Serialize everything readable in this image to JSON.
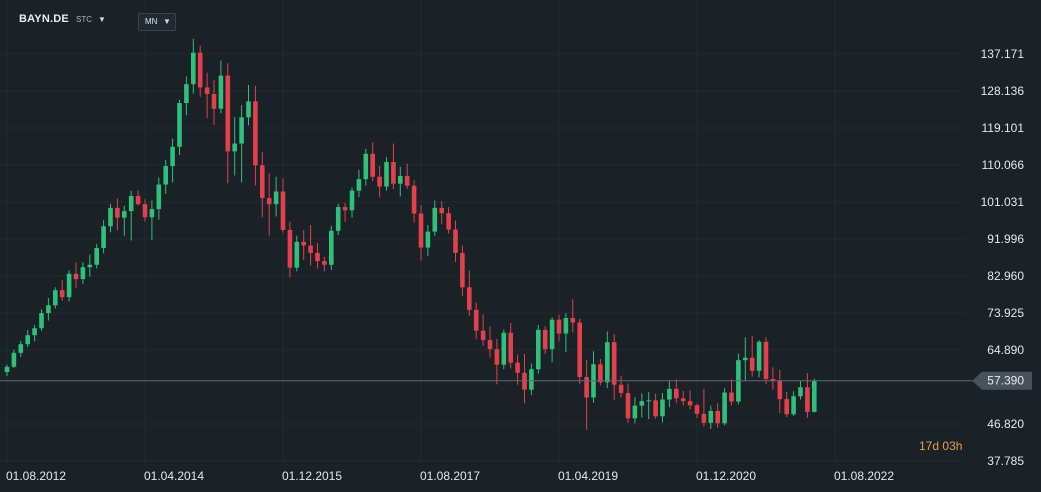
{
  "header": {
    "ticker": "BAYN.DE",
    "exchange": "STC",
    "timeframe": "MN"
  },
  "countdown": {
    "days": "17",
    "d_unit": "d",
    "hours": "03",
    "h_unit": "h"
  },
  "colors": {
    "background": "#1a2127",
    "up": "#2fc07a",
    "down": "#e2404d",
    "grid": "#232c33",
    "price_line": "#5f6b76",
    "price_tag": "#47525c",
    "countdown": "#e6a03a"
  },
  "chart_data": {
    "type": "candlestick",
    "title": "",
    "xlabel": "",
    "ylabel": "",
    "ylim": [
      37.785,
      137.171
    ],
    "y_ticks": [
      {
        "label": "137.171",
        "value": 137.171
      },
      {
        "label": "128.136",
        "value": 128.136
      },
      {
        "label": "119.101",
        "value": 119.101
      },
      {
        "label": "110.066",
        "value": 110.066
      },
      {
        "label": "101.031",
        "value": 101.031
      },
      {
        "label": "91.996",
        "value": 91.996
      },
      {
        "label": "82.960",
        "value": 82.96
      },
      {
        "label": "73.925",
        "value": 73.925
      },
      {
        "label": "64.890",
        "value": 64.89
      },
      {
        "label": "46.820",
        "value": 46.82
      },
      {
        "label": "37.785",
        "value": 37.785
      }
    ],
    "x_ticks": [
      {
        "label": "01.08.2012",
        "index": 0
      },
      {
        "label": "01.04.2014",
        "index": 20
      },
      {
        "label": "01.12.2015",
        "index": 40
      },
      {
        "label": "01.08.2017",
        "index": 60
      },
      {
        "label": "01.04.2019",
        "index": 80
      },
      {
        "label": "01.12.2020",
        "index": 100
      },
      {
        "label": "01.08.2022",
        "index": 120
      }
    ],
    "last_price": {
      "label": "57.390",
      "value": 57.39
    },
    "grid": true,
    "candles": [
      [
        59.5,
        61.3,
        58.5,
        60.8
      ],
      [
        60.8,
        65.0,
        60.5,
        64.2
      ],
      [
        64.2,
        67.1,
        63.2,
        66.3
      ],
      [
        66.3,
        69.8,
        65.6,
        68.5
      ],
      [
        68.5,
        71.0,
        67.0,
        70.2
      ],
      [
        70.2,
        74.8,
        69.6,
        73.9
      ],
      [
        73.9,
        77.6,
        72.1,
        75.8
      ],
      [
        75.8,
        80.2,
        75.0,
        79.5
      ],
      [
        79.5,
        82.0,
        76.9,
        77.8
      ],
      [
        77.8,
        84.4,
        76.8,
        83.5
      ],
      [
        83.5,
        86.2,
        80.1,
        82.2
      ],
      [
        82.2,
        86.3,
        81.0,
        85.1
      ],
      [
        85.1,
        88.2,
        82.8,
        85.7
      ],
      [
        85.7,
        90.8,
        84.8,
        89.8
      ],
      [
        89.8,
        96.6,
        88.5,
        95.1
      ],
      [
        95.1,
        100.6,
        93.6,
        99.6
      ],
      [
        99.6,
        101.9,
        94.1,
        97.2
      ],
      [
        97.2,
        100.1,
        92.8,
        98.8
      ],
      [
        98.8,
        103.8,
        91.6,
        102.5
      ],
      [
        102.5,
        103.9,
        100.2,
        100.5
      ],
      [
        100.5,
        101.7,
        96.3,
        97.3
      ],
      [
        97.3,
        101.4,
        91.8,
        99.3
      ],
      [
        99.3,
        107.0,
        96.7,
        105.3
      ],
      [
        105.3,
        111.3,
        103.0,
        109.8
      ],
      [
        109.8,
        116.5,
        105.8,
        114.5
      ],
      [
        114.5,
        126.0,
        112.5,
        125.2
      ],
      [
        125.2,
        131.7,
        122.2,
        129.8
      ],
      [
        129.8,
        140.9,
        127.5,
        137.5
      ],
      [
        137.5,
        139.2,
        126.7,
        129.0
      ],
      [
        129.0,
        132.6,
        121.5,
        127.4
      ],
      [
        127.4,
        130.8,
        119.8,
        123.8
      ],
      [
        123.8,
        135.6,
        122.7,
        131.9
      ],
      [
        131.9,
        134.9,
        105.6,
        113.4
      ],
      [
        113.4,
        121.8,
        107.5,
        115.3
      ],
      [
        115.3,
        124.7,
        105.8,
        121.7
      ],
      [
        121.7,
        129.6,
        119.7,
        125.6
      ],
      [
        125.6,
        129.4,
        105.1,
        110.0
      ],
      [
        110.0,
        113.2,
        97.3,
        102.0
      ],
      [
        102.0,
        108.0,
        92.8,
        100.5
      ],
      [
        100.5,
        107.2,
        97.5,
        103.6
      ],
      [
        103.6,
        106.8,
        93.5,
        94.2
      ],
      [
        94.2,
        96.2,
        82.6,
        85.0
      ],
      [
        85.0,
        92.8,
        84.1,
        91.3
      ],
      [
        91.3,
        94.2,
        86.9,
        90.4
      ],
      [
        90.4,
        95.4,
        85.5,
        88.6
      ],
      [
        88.6,
        91.0,
        84.8,
        86.6
      ],
      [
        86.6,
        87.6,
        84.1,
        85.7
      ],
      [
        85.7,
        95.2,
        84.4,
        94.0
      ],
      [
        94.0,
        100.6,
        93.0,
        99.8
      ],
      [
        99.8,
        100.8,
        96.2,
        99.0
      ],
      [
        99.0,
        104.6,
        97.2,
        103.8
      ],
      [
        103.8,
        108.9,
        102.2,
        106.6
      ],
      [
        106.6,
        114.0,
        105.0,
        112.8
      ],
      [
        112.8,
        115.6,
        106.1,
        107.2
      ],
      [
        107.2,
        109.8,
        102.2,
        104.8
      ],
      [
        104.8,
        112.0,
        103.8,
        110.8
      ],
      [
        110.8,
        115.3,
        104.2,
        105.5
      ],
      [
        105.5,
        109.6,
        102.4,
        107.4
      ],
      [
        107.4,
        110.4,
        104.2,
        105.0
      ],
      [
        105.0,
        106.3,
        96.0,
        98.2
      ],
      [
        98.2,
        100.2,
        86.7,
        89.9
      ],
      [
        89.9,
        95.4,
        87.9,
        93.8
      ],
      [
        93.8,
        101.4,
        92.8,
        99.6
      ],
      [
        99.6,
        101.2,
        95.6,
        98.3
      ],
      [
        98.3,
        99.8,
        93.3,
        94.3
      ],
      [
        94.3,
        96.5,
        86.4,
        88.6
      ],
      [
        88.6,
        90.4,
        78.1,
        80.2
      ],
      [
        80.2,
        84.3,
        73.2,
        74.7
      ],
      [
        74.7,
        76.5,
        67.5,
        69.6
      ],
      [
        69.6,
        73.6,
        65.9,
        67.3
      ],
      [
        67.3,
        70.6,
        63.0,
        65.1
      ],
      [
        65.1,
        67.6,
        56.5,
        61.3
      ],
      [
        61.3,
        69.9,
        60.2,
        69.1
      ],
      [
        69.1,
        71.5,
        60.4,
        61.8
      ],
      [
        61.8,
        63.8,
        56.4,
        59.3
      ],
      [
        59.3,
        63.9,
        51.9,
        55.2
      ],
      [
        55.2,
        61.6,
        53.9,
        60.2
      ],
      [
        60.2,
        71.0,
        59.1,
        69.8
      ],
      [
        69.8,
        70.7,
        63.9,
        65.1
      ],
      [
        65.1,
        72.8,
        61.9,
        72.3
      ],
      [
        72.3,
        73.5,
        67.0,
        68.9
      ],
      [
        68.9,
        73.9,
        64.4,
        72.7
      ],
      [
        72.7,
        77.3,
        69.2,
        71.6
      ],
      [
        71.6,
        72.5,
        56.5,
        58.3
      ],
      [
        58.3,
        62.5,
        45.4,
        53.3
      ],
      [
        53.3,
        64.6,
        52.0,
        61.4
      ],
      [
        61.4,
        62.7,
        56.3,
        57.0
      ],
      [
        57.0,
        69.4,
        55.6,
        66.8
      ],
      [
        66.8,
        68.8,
        52.7,
        56.4
      ],
      [
        56.4,
        58.6,
        53.3,
        54.4
      ],
      [
        54.4,
        56.7,
        47.1,
        48.2
      ],
      [
        48.2,
        53.4,
        47.0,
        51.3
      ],
      [
        51.3,
        54.3,
        48.4,
        52.4
      ],
      [
        52.4,
        54.6,
        48.0,
        52.6
      ],
      [
        52.6,
        54.2,
        48.1,
        48.7
      ],
      [
        48.7,
        54.4,
        47.2,
        52.8
      ],
      [
        52.8,
        57.4,
        50.9,
        55.4
      ],
      [
        55.4,
        57.7,
        51.9,
        53.1
      ],
      [
        53.1,
        54.9,
        51.3,
        52.4
      ],
      [
        52.4,
        55.1,
        50.4,
        51.4
      ],
      [
        51.4,
        51.8,
        48.3,
        49.3
      ],
      [
        49.3,
        55.4,
        46.2,
        47.1
      ],
      [
        47.1,
        51.3,
        45.6,
        50.0
      ],
      [
        50.0,
        51.9,
        45.9,
        47.0
      ],
      [
        47.0,
        55.6,
        46.5,
        54.5
      ],
      [
        54.5,
        57.7,
        51.4,
        52.3
      ],
      [
        52.3,
        64.0,
        51.6,
        62.4
      ],
      [
        62.4,
        68.0,
        57.2,
        63.0
      ],
      [
        63.0,
        68.3,
        58.4,
        59.8
      ],
      [
        59.8,
        67.3,
        58.2,
        66.9
      ],
      [
        66.9,
        68.0,
        56.6,
        57.8
      ],
      [
        57.8,
        60.7,
        55.2,
        57.3
      ],
      [
        57.3,
        60.0,
        49.5,
        52.9
      ],
      [
        52.9,
        54.7,
        48.5,
        49.2
      ],
      [
        49.2,
        54.8,
        48.8,
        53.6
      ],
      [
        53.6,
        57.4,
        52.8,
        55.8
      ],
      [
        55.8,
        59.3,
        48.3,
        49.8
      ],
      [
        49.8,
        57.9,
        49.6,
        57.4
      ]
    ]
  }
}
